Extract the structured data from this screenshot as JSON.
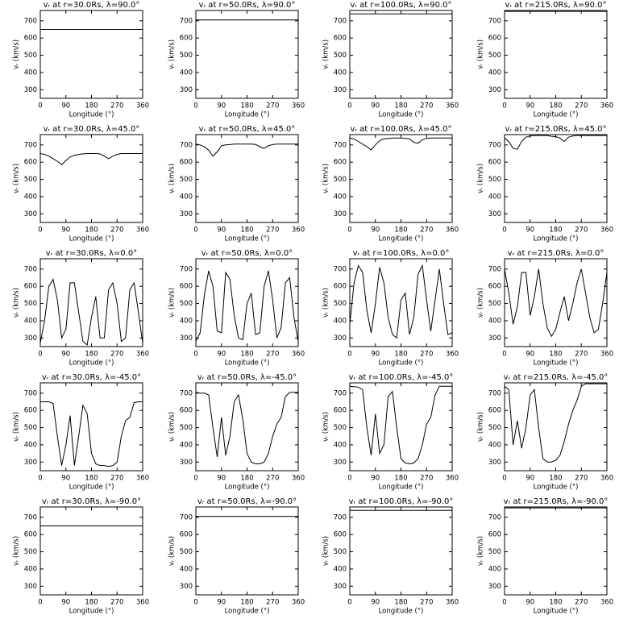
{
  "chart_data": [
    {
      "type": "line",
      "title": "vᵣ at r=30.0Rs, λ=90.0°",
      "xlabel": "Longitude (°)",
      "ylabel": "vᵣ (km/s)",
      "x": [
        0,
        360
      ],
      "values": [
        650,
        650
      ],
      "color": "#000000",
      "xlim": [
        0,
        360
      ],
      "ylim": [
        250,
        760
      ],
      "xticks": [
        0,
        90,
        180,
        270,
        360
      ],
      "yticks": [
        300,
        400,
        500,
        600,
        700
      ]
    },
    {
      "type": "line",
      "title": "vᵣ at r=50.0Rs, λ=90.0°",
      "xlabel": "Longitude (°)",
      "ylabel": "vᵣ (km/s)",
      "x": [
        0,
        360
      ],
      "values": [
        705,
        705
      ],
      "color": "#000000",
      "xlim": [
        0,
        360
      ],
      "ylim": [
        250,
        760
      ],
      "xticks": [
        0,
        90,
        180,
        270,
        360
      ],
      "yticks": [
        300,
        400,
        500,
        600,
        700
      ]
    },
    {
      "type": "line",
      "title": "vᵣ at r=100.0Rs, λ=90.0°",
      "xlabel": "Longitude (°)",
      "ylabel": "vᵣ (km/s)",
      "x": [
        0,
        360
      ],
      "values": [
        740,
        740
      ],
      "color": "#000000",
      "xlim": [
        0,
        360
      ],
      "ylim": [
        250,
        760
      ],
      "xticks": [
        0,
        90,
        180,
        270,
        360
      ],
      "yticks": [
        300,
        400,
        500,
        600,
        700
      ]
    },
    {
      "type": "line",
      "title": "vᵣ at r=215.0Rs, λ=90.0°",
      "xlabel": "Longitude (°)",
      "ylabel": "vᵣ (km/s)",
      "x": [
        0,
        360
      ],
      "values": [
        755,
        755
      ],
      "color": "#000000",
      "xlim": [
        0,
        360
      ],
      "ylim": [
        250,
        760
      ],
      "xticks": [
        0,
        90,
        180,
        270,
        360
      ],
      "yticks": [
        300,
        400,
        500,
        600,
        700
      ]
    },
    {
      "type": "line",
      "title": "vᵣ at r=30.0Rs, λ=45.0°",
      "xlabel": "Longitude (°)",
      "ylabel": "vᵣ (km/s)",
      "x": [
        0,
        15,
        30,
        45,
        60,
        75,
        90,
        105,
        120,
        135,
        150,
        165,
        180,
        195,
        210,
        225,
        240,
        255,
        270,
        285,
        300,
        315,
        330,
        345,
        360
      ],
      "values": [
        650,
        645,
        635,
        620,
        605,
        585,
        610,
        630,
        640,
        645,
        648,
        650,
        650,
        650,
        648,
        635,
        620,
        635,
        645,
        650,
        650,
        650,
        650,
        650,
        650
      ],
      "color": "#000000",
      "xlim": [
        0,
        360
      ],
      "ylim": [
        250,
        760
      ],
      "xticks": [
        0,
        90,
        180,
        270,
        360
      ],
      "yticks": [
        300,
        400,
        500,
        600,
        700
      ]
    },
    {
      "type": "line",
      "title": "vᵣ at r=50.0Rs, λ=45.0°",
      "xlabel": "Longitude (°)",
      "ylabel": "vᵣ (km/s)",
      "x": [
        0,
        15,
        30,
        45,
        60,
        75,
        90,
        105,
        120,
        135,
        150,
        165,
        180,
        195,
        210,
        225,
        240,
        255,
        270,
        285,
        300,
        315,
        330,
        345,
        360
      ],
      "values": [
        705,
        700,
        690,
        670,
        635,
        660,
        695,
        700,
        702,
        705,
        705,
        705,
        705,
        705,
        703,
        690,
        680,
        695,
        702,
        705,
        705,
        705,
        705,
        705,
        705
      ],
      "color": "#000000",
      "xlim": [
        0,
        360
      ],
      "ylim": [
        250,
        760
      ],
      "xticks": [
        0,
        90,
        180,
        270,
        360
      ],
      "yticks": [
        300,
        400,
        500,
        600,
        700
      ]
    },
    {
      "type": "line",
      "title": "vᵣ at r=100.0Rs, λ=45.0°",
      "xlabel": "Longitude (°)",
      "ylabel": "vᵣ (km/s)",
      "x": [
        0,
        15,
        30,
        45,
        60,
        75,
        90,
        105,
        120,
        135,
        150,
        165,
        180,
        195,
        210,
        225,
        240,
        255,
        270,
        285,
        300,
        315,
        330,
        345,
        360
      ],
      "values": [
        740,
        735,
        720,
        705,
        690,
        670,
        700,
        725,
        735,
        738,
        740,
        740,
        740,
        738,
        735,
        715,
        710,
        730,
        738,
        740,
        740,
        740,
        740,
        740,
        740
      ],
      "color": "#000000",
      "xlim": [
        0,
        360
      ],
      "ylim": [
        250,
        760
      ],
      "xticks": [
        0,
        90,
        180,
        270,
        360
      ],
      "yticks": [
        300,
        400,
        500,
        600,
        700
      ]
    },
    {
      "type": "line",
      "title": "vᵣ at r=215.0Rs, λ=45.0°",
      "xlabel": "Longitude (°)",
      "ylabel": "vᵣ (km/s)",
      "x": [
        0,
        15,
        30,
        45,
        60,
        75,
        90,
        105,
        120,
        135,
        150,
        165,
        180,
        195,
        210,
        225,
        240,
        255,
        270,
        285,
        300,
        315,
        330,
        345,
        360
      ],
      "values": [
        740,
        720,
        680,
        675,
        720,
        745,
        752,
        755,
        755,
        755,
        755,
        750,
        748,
        740,
        720,
        745,
        752,
        755,
        755,
        755,
        755,
        755,
        755,
        755,
        755
      ],
      "color": "#000000",
      "xlim": [
        0,
        360
      ],
      "ylim": [
        250,
        760
      ],
      "xticks": [
        0,
        90,
        180,
        270,
        360
      ],
      "yticks": [
        300,
        400,
        500,
        600,
        700
      ]
    },
    {
      "type": "line",
      "title": "vᵣ at r=30.0Rs, λ=0.0°",
      "xlabel": "Longitude (°)",
      "ylabel": "vᵣ (km/s)",
      "x": [
        0,
        15,
        30,
        45,
        60,
        75,
        90,
        105,
        120,
        135,
        150,
        165,
        180,
        195,
        210,
        225,
        240,
        255,
        270,
        285,
        300,
        315,
        330,
        345,
        360
      ],
      "values": [
        270,
        400,
        600,
        640,
        520,
        300,
        350,
        620,
        620,
        450,
        280,
        260,
        420,
        540,
        300,
        300,
        580,
        620,
        500,
        280,
        300,
        580,
        620,
        450,
        270
      ],
      "color": "#000000",
      "xlim": [
        0,
        360
      ],
      "ylim": [
        250,
        760
      ],
      "xticks": [
        0,
        90,
        180,
        270,
        360
      ],
      "yticks": [
        300,
        400,
        500,
        600,
        700
      ]
    },
    {
      "type": "line",
      "title": "vᵣ at r=50.0Rs, λ=0.0°",
      "xlabel": "Longitude (°)",
      "ylabel": "vᵣ (km/s)",
      "x": [
        0,
        15,
        30,
        45,
        60,
        75,
        90,
        105,
        120,
        135,
        150,
        165,
        180,
        195,
        210,
        225,
        240,
        255,
        270,
        285,
        300,
        315,
        330,
        345,
        360
      ],
      "values": [
        280,
        330,
        550,
        690,
        600,
        340,
        330,
        680,
        640,
        430,
        300,
        290,
        500,
        560,
        320,
        330,
        600,
        690,
        520,
        300,
        360,
        620,
        650,
        420,
        280
      ],
      "color": "#000000",
      "xlim": [
        0,
        360
      ],
      "ylim": [
        250,
        760
      ],
      "xticks": [
        0,
        90,
        180,
        270,
        360
      ],
      "yticks": [
        300,
        400,
        500,
        600,
        700
      ]
    },
    {
      "type": "line",
      "title": "vᵣ at r=100.0Rs, λ=0.0°",
      "xlabel": "Longitude (°)",
      "ylabel": "vᵣ (km/s)",
      "x": [
        0,
        15,
        30,
        45,
        60,
        75,
        90,
        105,
        120,
        135,
        150,
        165,
        180,
        195,
        210,
        225,
        240,
        255,
        270,
        285,
        300,
        315,
        330,
        345,
        360
      ],
      "values": [
        380,
        620,
        720,
        680,
        460,
        330,
        500,
        710,
        620,
        420,
        320,
        300,
        520,
        560,
        320,
        420,
        670,
        720,
        520,
        340,
        520,
        700,
        500,
        320,
        330
      ],
      "color": "#000000",
      "xlim": [
        0,
        360
      ],
      "ylim": [
        250,
        760
      ],
      "xticks": [
        0,
        90,
        180,
        270,
        360
      ],
      "yticks": [
        300,
        400,
        500,
        600,
        700
      ]
    },
    {
      "type": "line",
      "title": "vᵣ at r=215.0Rs, λ=0.0°",
      "xlabel": "Longitude (°)",
      "ylabel": "vᵣ (km/s)",
      "x": [
        0,
        15,
        30,
        45,
        60,
        75,
        90,
        105,
        120,
        135,
        150,
        165,
        180,
        195,
        210,
        225,
        240,
        255,
        270,
        285,
        300,
        315,
        330,
        345,
        360
      ],
      "values": [
        700,
        560,
        380,
        480,
        680,
        680,
        430,
        540,
        700,
        500,
        360,
        310,
        350,
        450,
        540,
        400,
        500,
        620,
        700,
        560,
        420,
        330,
        350,
        500,
        680
      ],
      "color": "#000000",
      "xlim": [
        0,
        360
      ],
      "ylim": [
        250,
        760
      ],
      "xticks": [
        0,
        90,
        180,
        270,
        360
      ],
      "yticks": [
        300,
        400,
        500,
        600,
        700
      ]
    },
    {
      "type": "line",
      "title": "vᵣ at r=30.0Rs, λ=-45.0°",
      "xlabel": "Longitude (°)",
      "ylabel": "vᵣ (km/s)",
      "x": [
        0,
        15,
        30,
        45,
        60,
        75,
        90,
        105,
        120,
        135,
        150,
        165,
        180,
        195,
        210,
        225,
        240,
        255,
        270,
        285,
        300,
        315,
        330,
        345,
        360
      ],
      "values": [
        650,
        650,
        650,
        640,
        450,
        280,
        400,
        570,
        280,
        450,
        630,
        580,
        350,
        290,
        280,
        280,
        275,
        280,
        300,
        450,
        540,
        560,
        645,
        650,
        650
      ],
      "color": "#000000",
      "xlim": [
        0,
        360
      ],
      "ylim": [
        250,
        760
      ],
      "xticks": [
        0,
        90,
        180,
        270,
        360
      ],
      "yticks": [
        300,
        400,
        500,
        600,
        700
      ]
    },
    {
      "type": "line",
      "title": "vᵣ at r=50.0Rs, λ=-45.0°",
      "xlabel": "Longitude (°)",
      "ylabel": "vᵣ (km/s)",
      "x": [
        0,
        15,
        30,
        45,
        60,
        75,
        90,
        105,
        120,
        135,
        150,
        165,
        180,
        195,
        210,
        225,
        240,
        255,
        270,
        285,
        300,
        315,
        330,
        345,
        360
      ],
      "values": [
        705,
        700,
        700,
        690,
        500,
        330,
        560,
        340,
        450,
        650,
        690,
        550,
        350,
        300,
        290,
        290,
        300,
        350,
        450,
        520,
        560,
        680,
        705,
        705,
        705
      ],
      "color": "#000000",
      "xlim": [
        0,
        360
      ],
      "ylim": [
        250,
        760
      ],
      "xticks": [
        0,
        90,
        180,
        270,
        360
      ],
      "yticks": [
        300,
        400,
        500,
        600,
        700
      ]
    },
    {
      "type": "line",
      "title": "vᵣ at r=100.0Rs, λ=-45.0°",
      "xlabel": "Longitude (°)",
      "ylabel": "vᵣ (km/s)",
      "x": [
        0,
        15,
        30,
        45,
        60,
        75,
        90,
        105,
        120,
        135,
        150,
        165,
        180,
        195,
        210,
        225,
        240,
        255,
        270,
        285,
        300,
        315,
        330,
        345,
        360
      ],
      "values": [
        740,
        738,
        735,
        720,
        500,
        340,
        580,
        350,
        400,
        680,
        710,
        500,
        320,
        295,
        290,
        295,
        320,
        400,
        520,
        560,
        690,
        740,
        740,
        740,
        740
      ],
      "color": "#000000",
      "xlim": [
        0,
        360
      ],
      "ylim": [
        250,
        760
      ],
      "xticks": [
        0,
        90,
        180,
        270,
        360
      ],
      "yticks": [
        300,
        400,
        500,
        600,
        700
      ]
    },
    {
      "type": "line",
      "title": "vᵣ at r=215.0Rs, λ=-45.0°",
      "xlabel": "Longitude (°)",
      "ylabel": "vᵣ (km/s)",
      "x": [
        0,
        15,
        30,
        45,
        60,
        75,
        90,
        105,
        120,
        135,
        150,
        165,
        180,
        195,
        210,
        225,
        240,
        255,
        270,
        285,
        300,
        315,
        330,
        345,
        360
      ],
      "values": [
        740,
        720,
        400,
        540,
        380,
        500,
        690,
        720,
        500,
        320,
        300,
        300,
        310,
        340,
        420,
        520,
        600,
        660,
        740,
        755,
        755,
        755,
        755,
        755,
        755
      ],
      "color": "#000000",
      "xlim": [
        0,
        360
      ],
      "ylim": [
        250,
        760
      ],
      "xticks": [
        0,
        90,
        180,
        270,
        360
      ],
      "yticks": [
        300,
        400,
        500,
        600,
        700
      ]
    },
    {
      "type": "line",
      "title": "vᵣ at r=30.0Rs, λ=-90.0°",
      "xlabel": "Longitude (°)",
      "ylabel": "vᵣ (km/s)",
      "x": [
        0,
        360
      ],
      "values": [
        650,
        650
      ],
      "color": "#000000",
      "xlim": [
        0,
        360
      ],
      "ylim": [
        250,
        760
      ],
      "xticks": [
        0,
        90,
        180,
        270,
        360
      ],
      "yticks": [
        300,
        400,
        500,
        600,
        700
      ]
    },
    {
      "type": "line",
      "title": "vᵣ at r=50.0Rs, λ=-90.0°",
      "xlabel": "Longitude (°)",
      "ylabel": "vᵣ (km/s)",
      "x": [
        0,
        360
      ],
      "values": [
        705,
        705
      ],
      "color": "#000000",
      "xlim": [
        0,
        360
      ],
      "ylim": [
        250,
        760
      ],
      "xticks": [
        0,
        90,
        180,
        270,
        360
      ],
      "yticks": [
        300,
        400,
        500,
        600,
        700
      ]
    },
    {
      "type": "line",
      "title": "vᵣ at r=100.0Rs, λ=-90.0°",
      "xlabel": "Longitude (°)",
      "ylabel": "vᵣ (km/s)",
      "x": [
        0,
        360
      ],
      "values": [
        740,
        740
      ],
      "color": "#000000",
      "xlim": [
        0,
        360
      ],
      "ylim": [
        250,
        760
      ],
      "xticks": [
        0,
        90,
        180,
        270,
        360
      ],
      "yticks": [
        300,
        400,
        500,
        600,
        700
      ]
    },
    {
      "type": "line",
      "title": "vᵣ at r=215.0Rs, λ=-90.0°",
      "xlabel": "Longitude (°)",
      "ylabel": "vᵣ (km/s)",
      "x": [
        0,
        360
      ],
      "values": [
        755,
        755
      ],
      "color": "#000000",
      "xlim": [
        0,
        360
      ],
      "ylim": [
        250,
        760
      ],
      "xticks": [
        0,
        90,
        180,
        270,
        360
      ],
      "yticks": [
        300,
        400,
        500,
        600,
        700
      ]
    }
  ]
}
